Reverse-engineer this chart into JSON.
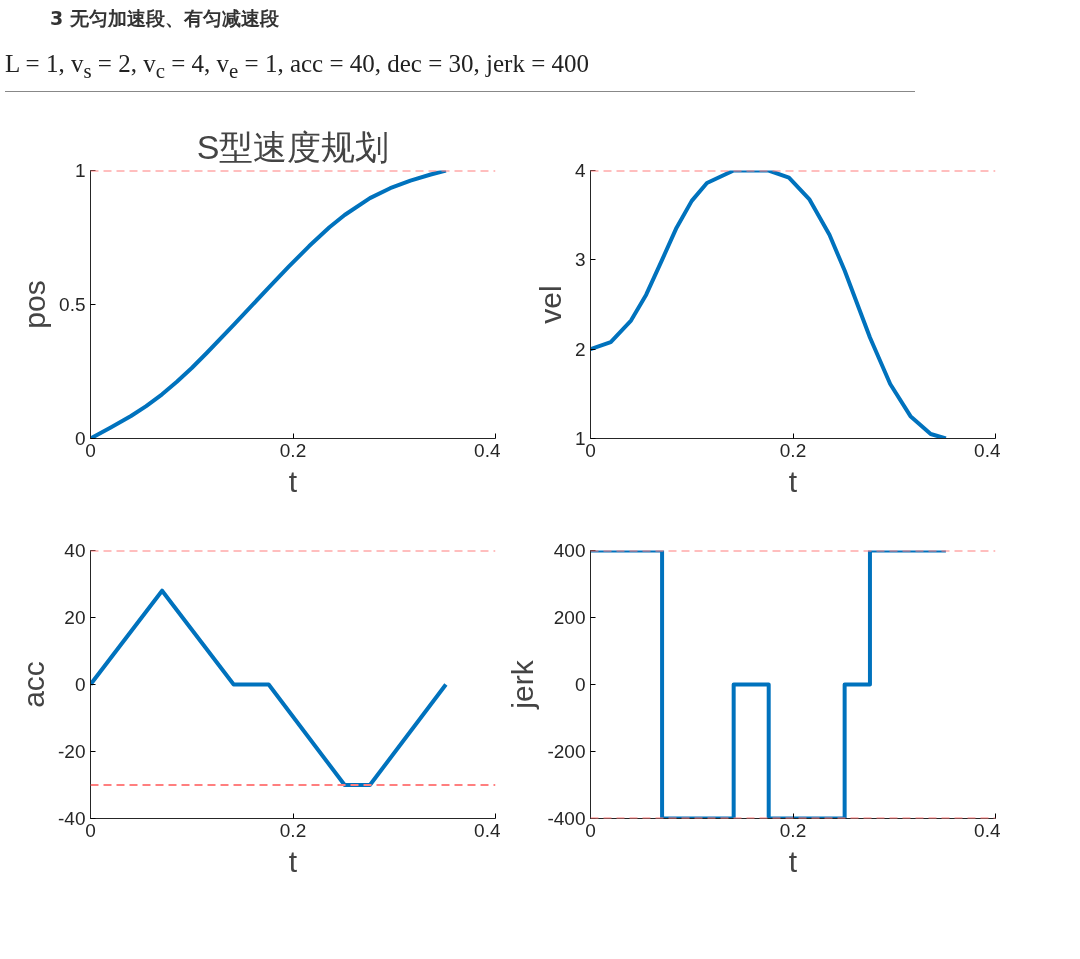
{
  "chart_data": [
    {
      "type": "line",
      "title": "S型速度规划",
      "annotations": [
        "3 无匀加速段、有匀减速段",
        "L = 1, v$_{s}$ = 2, v$_{c}$ = 4, v$_{e}$ = 1, acc = 40, dec = 30, jerk = 400"
      ],
      "xlabel": "t",
      "ylabel": "pos",
      "grid": false,
      "x": [
        0,
        0.02,
        0.04,
        0.055,
        0.0707,
        0.085,
        0.1,
        0.115,
        0.1414,
        0.176,
        0.196,
        0.216,
        0.236,
        0.251,
        0.276,
        0.296,
        0.316,
        0.336,
        0.351
      ],
      "series": [
        {
          "color": "#0072bd",
          "values": [
            0,
            0.041,
            0.084,
            0.121,
            0.165,
            0.211,
            0.263,
            0.32,
            0.424,
            0.563,
            0.642,
            0.718,
            0.788,
            0.834,
            0.897,
            0.934,
            0.962,
            0.985,
            1
          ]
        }
      ],
      "xlim": [
        0,
        0.4
      ],
      "xticks": [
        0,
        0.2,
        0.4
      ],
      "ylim": [
        0,
        1
      ],
      "yticks": [
        0,
        0.5,
        1
      ],
      "ref_lines": [
        {
          "axis": "y",
          "value": 1,
          "color": "#ff7f7f",
          "line_style": "dashed"
        }
      ]
    },
    {
      "type": "line",
      "xlabel": "t",
      "ylabel": "vel",
      "grid": false,
      "x": [
        0,
        0.02,
        0.04,
        0.055,
        0.0707,
        0.085,
        0.1,
        0.115,
        0.1414,
        0.176,
        0.196,
        0.216,
        0.236,
        0.251,
        0.276,
        0.296,
        0.316,
        0.336,
        0.351
      ],
      "series": [
        {
          "color": "#0072bd",
          "values": [
            2,
            2.08,
            2.32,
            2.61,
            3,
            3.36,
            3.66,
            3.86,
            4,
            4,
            3.92,
            3.68,
            3.28,
            2.88,
            2.13,
            1.61,
            1.25,
            1.05,
            1
          ]
        }
      ],
      "xlim": [
        0,
        0.4
      ],
      "xticks": [
        0,
        0.2,
        0.4
      ],
      "ylim": [
        1,
        4
      ],
      "yticks": [
        1,
        2,
        3,
        4
      ],
      "ref_lines": [
        {
          "axis": "y",
          "value": 4,
          "color": "#ff7f7f",
          "line_style": "dashed"
        }
      ]
    },
    {
      "type": "line",
      "xlabel": "t",
      "ylabel": "acc",
      "grid": false,
      "x": [
        0,
        0.0707,
        0.1414,
        0.176,
        0.251,
        0.276,
        0.351
      ],
      "series": [
        {
          "color": "#0072bd",
          "values": [
            0,
            28,
            0,
            0,
            -30,
            -30,
            0
          ]
        }
      ],
      "xlim": [
        0,
        0.4
      ],
      "xticks": [
        0,
        0.2,
        0.4
      ],
      "ylim": [
        -40,
        40
      ],
      "yticks": [
        -40,
        -20,
        0,
        20,
        40
      ],
      "ref_lines": [
        {
          "axis": "y",
          "value": 40,
          "color": "#ff7f7f",
          "line_style": "dashed"
        },
        {
          "axis": "y",
          "value": -30,
          "color": "#ff7f7f",
          "line_style": "dashed"
        }
      ]
    },
    {
      "type": "step",
      "xlabel": "t",
      "ylabel": "jerk",
      "grid": false,
      "x": [
        0,
        0.0707,
        0.1414,
        0.176,
        0.251,
        0.276,
        0.351
      ],
      "series": [
        {
          "color": "#0072bd",
          "values": [
            400,
            -400,
            0,
            -400,
            0,
            400,
            400
          ]
        }
      ],
      "xlim": [
        0,
        0.4
      ],
      "xticks": [
        0,
        0.2,
        0.4
      ],
      "ylim": [
        -400,
        400
      ],
      "yticks": [
        -400,
        -200,
        0,
        200,
        400
      ],
      "ref_lines": [
        {
          "axis": "y",
          "value": 400,
          "color": "#ff7f7f",
          "line_style": "dashed"
        },
        {
          "axis": "y",
          "value": -400,
          "color": "#ff7f7f",
          "line_style": "dashed"
        }
      ]
    }
  ]
}
